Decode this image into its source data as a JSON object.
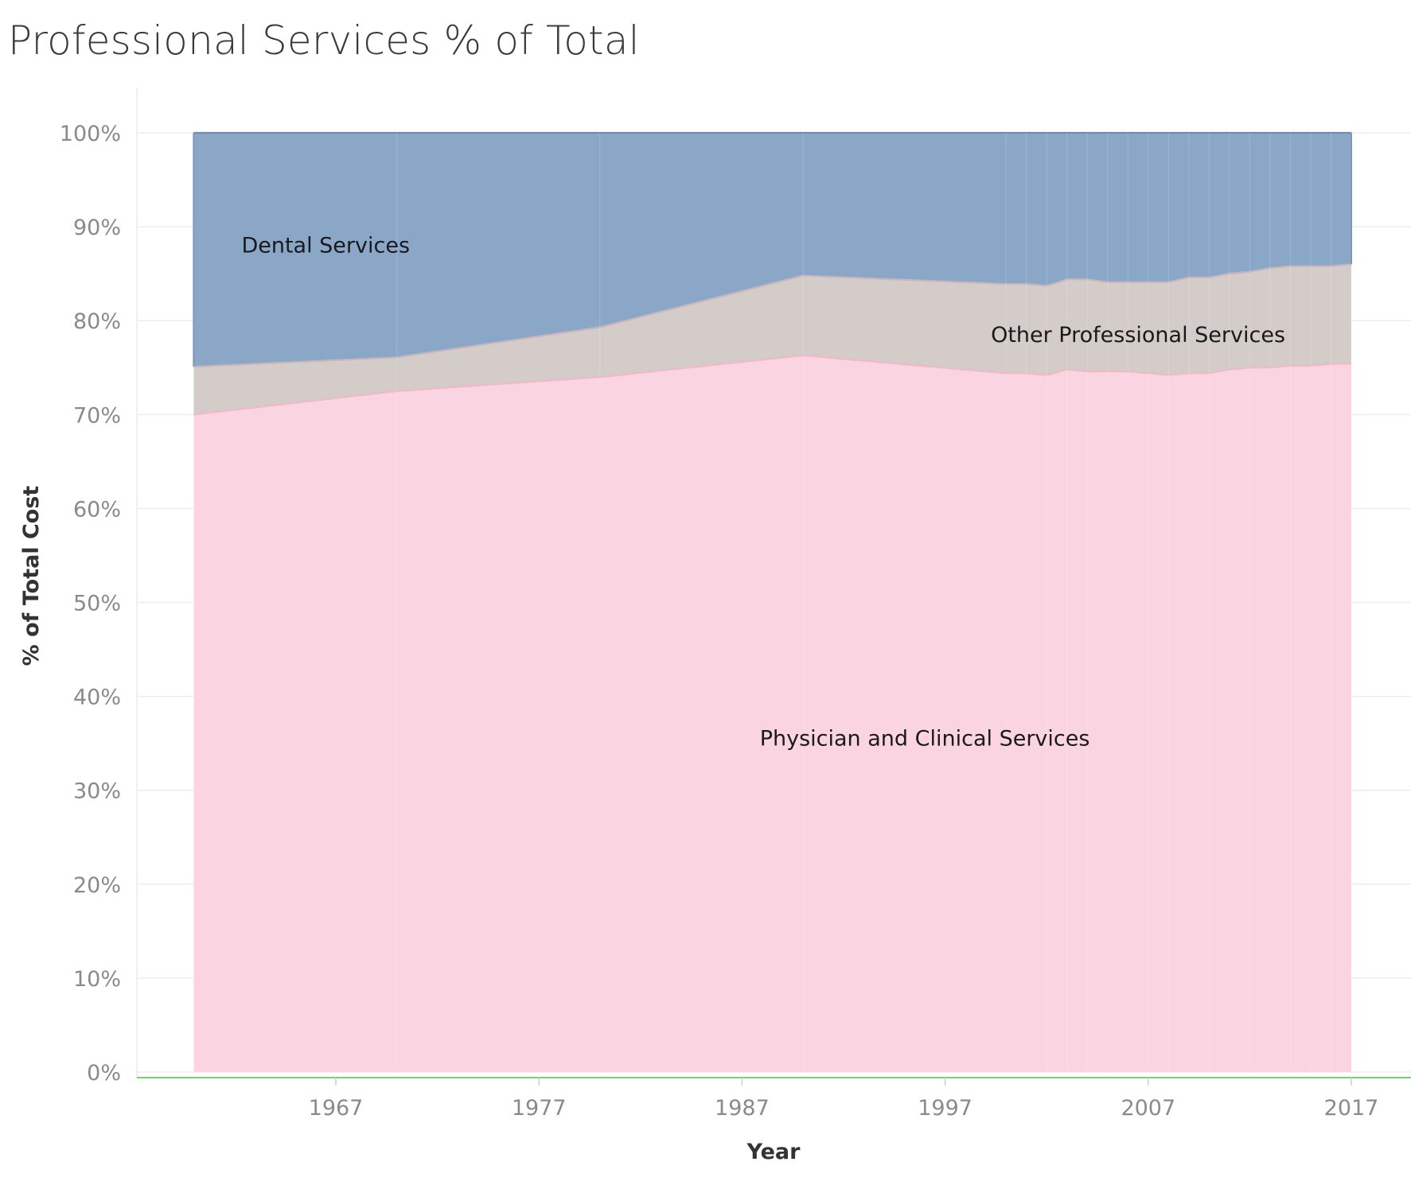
{
  "title": "Professional Services % of Total",
  "chart_data": {
    "type": "area",
    "stacked": true,
    "normalized": true,
    "title": "Professional Services % of Total",
    "xlabel": "Year",
    "ylabel": "% of Total Cost",
    "ylim": [
      0,
      100
    ],
    "yticks": [
      "0%",
      "10%",
      "20%",
      "30%",
      "40%",
      "50%",
      "60%",
      "70%",
      "80%",
      "90%",
      "100%"
    ],
    "xticks": [
      "1967",
      "1977",
      "1987",
      "1997",
      "2007",
      "2017"
    ],
    "grid": true,
    "x": [
      1960,
      1970,
      1980,
      1990,
      2000,
      2001,
      2002,
      2003,
      2004,
      2005,
      2006,
      2007,
      2008,
      2009,
      2010,
      2011,
      2012,
      2013,
      2014,
      2015,
      2016,
      2017
    ],
    "series": [
      {
        "name": "Physician and Clinical Services",
        "color": "#fad4e0",
        "values": [
          70.0,
          72.5,
          74.0,
          76.3,
          74.4,
          74.4,
          74.2,
          74.8,
          74.6,
          74.6,
          74.6,
          74.4,
          74.2,
          74.4,
          74.4,
          74.8,
          75.0,
          75.0,
          75.2,
          75.2,
          75.4,
          75.4
        ]
      },
      {
        "name": "Other Professional Services",
        "color": "#d3ccc9",
        "values": [
          5.1,
          3.6,
          5.3,
          8.5,
          9.5,
          9.5,
          9.5,
          9.6,
          9.8,
          9.5,
          9.5,
          9.7,
          9.9,
          10.2,
          10.2,
          10.2,
          10.2,
          10.6,
          10.6,
          10.6,
          10.4,
          10.6
        ]
      },
      {
        "name": "Dental Services",
        "color": "#8aa7c8",
        "values": [
          24.9,
          23.9,
          20.7,
          15.2,
          16.1,
          16.1,
          16.3,
          15.6,
          15.6,
          15.9,
          15.9,
          15.9,
          15.9,
          15.4,
          15.4,
          15.0,
          14.8,
          14.4,
          14.2,
          14.2,
          14.2,
          14.0
        ]
      }
    ],
    "annotations": [
      {
        "text": "Dental Services",
        "x": 1966.5,
        "y": 88
      },
      {
        "text": "Other Professional Services",
        "x": 2006.5,
        "y": 78.5
      },
      {
        "text": "Physician and Clinical Services",
        "x": 1996,
        "y": 35.5
      }
    ]
  }
}
